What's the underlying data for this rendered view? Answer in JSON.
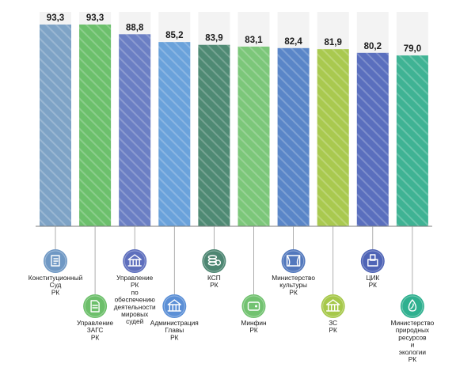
{
  "chart_data": {
    "type": "bar",
    "ylim": [
      0,
      100
    ],
    "grid": false,
    "categories": [
      [
        "Конституционный",
        "Суд",
        "РК"
      ],
      [
        "Управление",
        "ЗАГС",
        "РК"
      ],
      [
        "Управление",
        "РК",
        "по",
        "обеспечению",
        "деятельности",
        "мировых",
        "судей"
      ],
      [
        "Администрация",
        "Главы",
        "РК"
      ],
      [
        "КСП",
        "РК"
      ],
      [
        "Минфин",
        "РК"
      ],
      [
        "Министерство",
        "культуры",
        "РК"
      ],
      [
        "ЗС",
        "РК"
      ],
      [
        "ЦИК",
        "РК"
      ],
      [
        "Министерство",
        "природных",
        "ресурсов",
        "и",
        "экологии",
        "РК"
      ]
    ],
    "values": [
      93.3,
      93.3,
      88.8,
      85.2,
      83.9,
      83.1,
      82.4,
      81.9,
      80.2,
      79.0
    ],
    "value_labels": [
      "93,3",
      "93,3",
      "88,8",
      "85,2",
      "83,9",
      "83,1",
      "82,4",
      "81,9",
      "80,2",
      "79,0"
    ],
    "bar_colors": [
      "#7ea3c6",
      "#6cc06c",
      "#6b7fc4",
      "#6aa2db",
      "#4f8a74",
      "#7cc77a",
      "#5a86c8",
      "#a9c94f",
      "#5a6fbe",
      "#3fb394"
    ],
    "icons": [
      "constitution-icon",
      "document-icon",
      "court-building-icon",
      "administration-building-icon",
      "coins-icon",
      "wallet-icon",
      "theater-icon",
      "parliament-icon",
      "ballot-box-icon",
      "ecology-drop-icon"
    ],
    "icon_colors": [
      "#6f98c4",
      "#6cbf6a",
      "#5e6fbd",
      "#5b8fd6",
      "#4d8672",
      "#72c270",
      "#5278bd",
      "#a6c84a",
      "#4f64b6",
      "#2fb08f"
    ],
    "background_track_color": "#f3f3f3",
    "axis_color": "#7b7b7b"
  }
}
